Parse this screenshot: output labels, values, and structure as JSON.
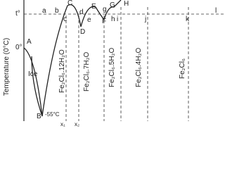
{
  "axis_label": "Temperature (0°C)",
  "labels": {
    "t": "t°",
    "zero": "0°",
    "A": "A",
    "ice": "Ice",
    "B": "B",
    "minus55": "-55°C",
    "x1": "x₁",
    "x2": "x₂",
    "a": "a",
    "b": "b",
    "C": "C",
    "c": "c",
    "D": "D",
    "d": "d",
    "E": "E",
    "e": "e",
    "F": "F",
    "G": "G",
    "g": "g",
    "H": "H",
    "h": "h",
    "i": "i",
    "j": "j",
    "k": "k",
    "l": "l"
  },
  "compounds": [
    "Fe₂Cl₆.12H₂O",
    "Fe₂Cl₆.7H₂O",
    "Fe₂Cl₆.5H₂O",
    "Fe₂Cl₆.4H₂O",
    "Fe₂Cl₆"
  ]
}
